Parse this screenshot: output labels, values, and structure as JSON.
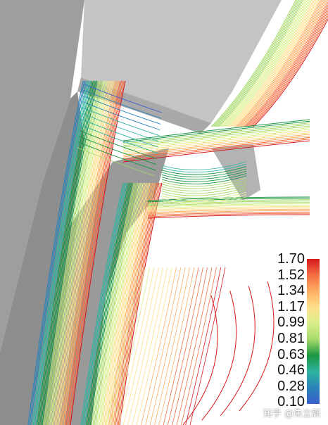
{
  "legend": {
    "labels": [
      "1.70",
      "1.52",
      "1.34",
      "1.17",
      "0.99",
      "0.81",
      "0.63",
      "0.46",
      "0.28",
      "0.10"
    ],
    "colors": [
      "#d7191c",
      "#f46d43",
      "#fdae61",
      "#fee08b",
      "#d9ef8b",
      "#a6d96a",
      "#1a9641",
      "#2fb3a0",
      "#2b83ba",
      "#3a5fcd"
    ]
  },
  "watermark": "知乎 @朱立新",
  "colors": {
    "wall": "#a7a7a7",
    "wall_dark": "#8f8f8f",
    "wall_light": "#c9c9c9",
    "background": "#ffffff"
  }
}
